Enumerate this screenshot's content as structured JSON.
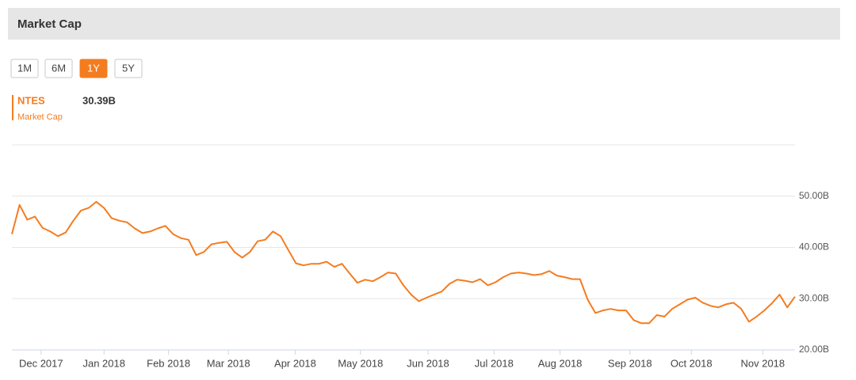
{
  "chart_data": {
    "type": "line",
    "title": "Market Cap",
    "range_buttons": [
      "1M",
      "6M",
      "1Y",
      "5Y"
    ],
    "active_range": "1Y",
    "series": [
      {
        "name": "NTES",
        "label": "Market Cap",
        "color": "#f47c20",
        "last_value_label": "30.39B",
        "values": [
          42.6,
          48.3,
          45.4,
          46.0,
          43.8,
          43.1,
          42.2,
          42.9,
          45.2,
          47.2,
          47.7,
          48.9,
          47.7,
          45.7,
          45.2,
          44.9,
          43.7,
          42.8,
          43.1,
          43.7,
          44.2,
          42.6,
          41.8,
          41.5,
          38.5,
          39.1,
          40.6,
          40.9,
          41.1,
          39.1,
          38.0,
          39.1,
          41.2,
          41.5,
          43.1,
          42.2,
          39.5,
          36.9,
          36.5,
          36.8,
          36.8,
          37.2,
          36.2,
          36.8,
          34.9,
          33.1,
          33.7,
          33.4,
          34.2,
          35.1,
          34.9,
          32.6,
          30.8,
          29.5,
          30.2,
          30.8,
          31.4,
          32.9,
          33.7,
          33.5,
          33.2,
          33.8,
          32.6,
          33.2,
          34.2,
          34.9,
          35.1,
          34.9,
          34.6,
          34.8,
          35.4,
          34.5,
          34.2,
          33.8,
          33.8,
          29.8,
          27.2,
          27.7,
          28.0,
          27.7,
          27.7,
          25.8,
          25.2,
          25.2,
          26.8,
          26.5,
          28.0,
          28.9,
          29.8,
          30.2,
          29.2,
          28.6,
          28.3,
          28.9,
          29.2,
          28.0,
          25.5,
          26.5,
          27.7,
          29.1,
          30.8,
          28.3,
          30.39
        ]
      }
    ],
    "xlim": [
      0,
      102
    ],
    "xticks": [
      {
        "value": 3.8,
        "label": "Dec 2017"
      },
      {
        "value": 12.0,
        "label": "Jan 2018"
      },
      {
        "value": 20.4,
        "label": "Feb 2018"
      },
      {
        "value": 28.2,
        "label": "Mar 2018"
      },
      {
        "value": 36.9,
        "label": "Apr 2018"
      },
      {
        "value": 45.4,
        "label": "May 2018"
      },
      {
        "value": 54.2,
        "label": "Jun 2018"
      },
      {
        "value": 62.8,
        "label": "Jul 2018"
      },
      {
        "value": 71.4,
        "label": "Aug 2018"
      },
      {
        "value": 80.5,
        "label": "Sep 2018"
      },
      {
        "value": 88.5,
        "label": "Oct 2018"
      },
      {
        "value": 97.8,
        "label": "Nov 2018"
      }
    ],
    "ylim": [
      20,
      60
    ],
    "yticks": [
      {
        "value": 20,
        "label": "20.00B"
      },
      {
        "value": 30,
        "label": "30.00B"
      },
      {
        "value": 40,
        "label": "40.00B"
      },
      {
        "value": 50,
        "label": "50.00B"
      }
    ],
    "grid": true
  }
}
